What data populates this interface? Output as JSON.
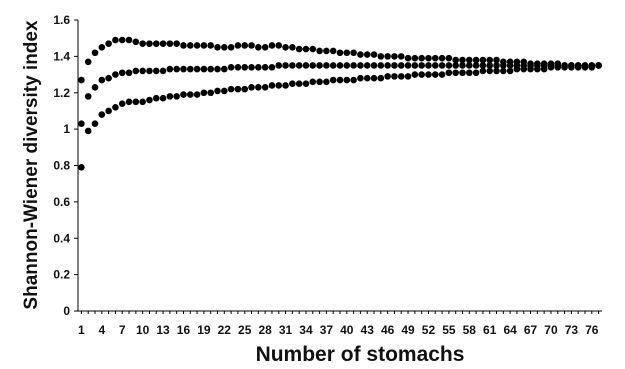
{
  "chart_data": {
    "type": "scatter",
    "title": "",
    "xlabel": "Number of stomachs",
    "ylabel": "Shannon-Wiener diversity index",
    "xlim": [
      0.5,
      77.5
    ],
    "ylim": [
      0,
      1.6
    ],
    "x_ticks": [
      1,
      4,
      7,
      10,
      13,
      16,
      19,
      22,
      25,
      28,
      31,
      34,
      37,
      40,
      43,
      46,
      49,
      52,
      55,
      58,
      61,
      64,
      67,
      70,
      73,
      76
    ],
    "y_ticks": [
      0,
      0.2,
      0.4,
      0.6,
      0.8,
      1,
      1.2,
      1.4,
      1.6
    ],
    "x": [
      1,
      2,
      3,
      4,
      5,
      6,
      7,
      8,
      9,
      10,
      11,
      12,
      13,
      14,
      15,
      16,
      17,
      18,
      19,
      20,
      21,
      22,
      23,
      24,
      25,
      26,
      27,
      28,
      29,
      30,
      31,
      32,
      33,
      34,
      35,
      36,
      37,
      38,
      39,
      40,
      41,
      42,
      43,
      44,
      45,
      46,
      47,
      48,
      49,
      50,
      51,
      52,
      53,
      54,
      55,
      56,
      57,
      58,
      59,
      60,
      61,
      62,
      63,
      64,
      65,
      66,
      67,
      68,
      69,
      70,
      71,
      72,
      73,
      74,
      75,
      76,
      77
    ],
    "series": [
      {
        "name": "",
        "values": [
          1.27,
          1.37,
          1.42,
          1.45,
          1.47,
          1.49,
          1.49,
          1.49,
          1.48,
          1.47,
          1.47,
          1.47,
          1.47,
          1.47,
          1.47,
          1.46,
          1.46,
          1.46,
          1.46,
          1.46,
          1.45,
          1.45,
          1.45,
          1.46,
          1.46,
          1.46,
          1.45,
          1.45,
          1.46,
          1.46,
          1.45,
          1.45,
          1.44,
          1.44,
          1.44,
          1.43,
          1.43,
          1.43,
          1.42,
          1.42,
          1.42,
          1.41,
          1.41,
          1.41,
          1.4,
          1.4,
          1.4,
          1.4,
          1.39,
          1.39,
          1.39,
          1.39,
          1.39,
          1.39,
          1.39,
          1.38,
          1.38,
          1.38,
          1.38,
          1.38,
          1.38,
          1.38,
          1.37,
          1.37,
          1.37,
          1.37,
          1.36,
          1.36,
          1.36,
          1.36,
          1.36,
          1.35,
          1.35,
          1.35,
          1.35,
          1.35,
          1.35
        ]
      },
      {
        "name": "",
        "values": [
          1.03,
          1.18,
          1.23,
          1.27,
          1.28,
          1.3,
          1.31,
          1.31,
          1.32,
          1.32,
          1.32,
          1.32,
          1.32,
          1.33,
          1.33,
          1.33,
          1.33,
          1.33,
          1.33,
          1.33,
          1.33,
          1.33,
          1.34,
          1.34,
          1.34,
          1.34,
          1.34,
          1.34,
          1.34,
          1.35,
          1.35,
          1.35,
          1.35,
          1.35,
          1.35,
          1.35,
          1.35,
          1.35,
          1.35,
          1.35,
          1.35,
          1.35,
          1.35,
          1.35,
          1.35,
          1.35,
          1.35,
          1.35,
          1.35,
          1.35,
          1.35,
          1.35,
          1.35,
          1.35,
          1.35,
          1.35,
          1.35,
          1.35,
          1.35,
          1.35,
          1.35,
          1.35,
          1.35,
          1.35,
          1.35,
          1.35,
          1.35,
          1.35,
          1.35,
          1.35,
          1.35,
          1.35,
          1.35,
          1.35,
          1.35,
          1.35,
          1.35
        ]
      },
      {
        "name": "",
        "values": [
          0.79,
          0.99,
          1.03,
          1.08,
          1.1,
          1.12,
          1.14,
          1.15,
          1.15,
          1.15,
          1.16,
          1.17,
          1.17,
          1.18,
          1.18,
          1.19,
          1.19,
          1.19,
          1.2,
          1.2,
          1.21,
          1.21,
          1.22,
          1.22,
          1.22,
          1.23,
          1.23,
          1.23,
          1.24,
          1.24,
          1.24,
          1.25,
          1.25,
          1.25,
          1.26,
          1.26,
          1.26,
          1.27,
          1.27,
          1.27,
          1.27,
          1.28,
          1.28,
          1.28,
          1.28,
          1.29,
          1.29,
          1.29,
          1.29,
          1.3,
          1.3,
          1.3,
          1.3,
          1.3,
          1.31,
          1.31,
          1.31,
          1.31,
          1.31,
          1.32,
          1.32,
          1.32,
          1.32,
          1.32,
          1.33,
          1.33,
          1.33,
          1.33,
          1.33,
          1.34,
          1.34,
          1.34,
          1.34,
          1.34,
          1.34,
          1.34,
          1.35
        ]
      }
    ],
    "grid": false,
    "legend": "none",
    "marker_color": "#000000"
  }
}
